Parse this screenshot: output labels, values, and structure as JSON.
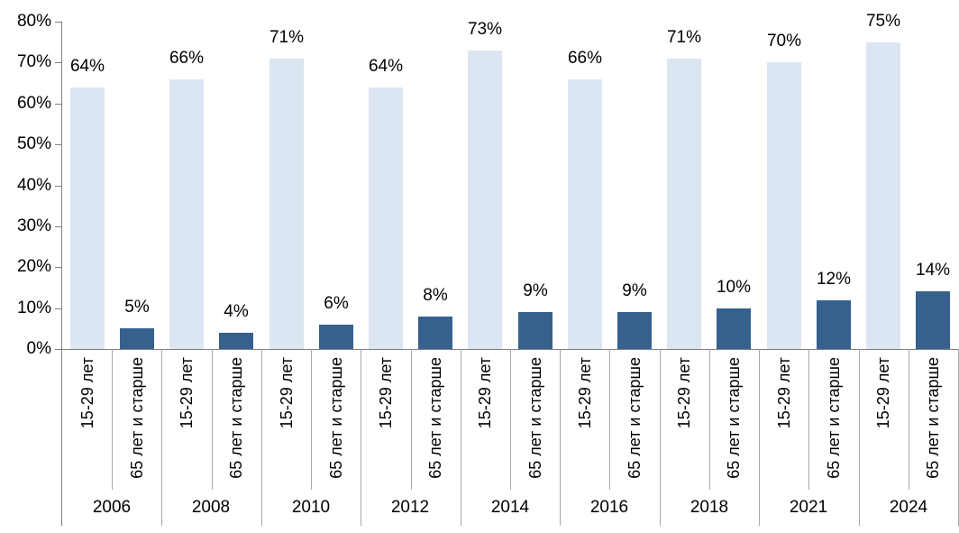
{
  "chart_data": {
    "type": "bar",
    "title": "",
    "xlabel": "",
    "ylabel": "",
    "categories": [
      "2006",
      "2008",
      "2010",
      "2012",
      "2014",
      "2016",
      "2018",
      "2021",
      "2024"
    ],
    "series": [
      {
        "name": "15-29 лет",
        "color": "#dce6f2",
        "values": [
          64,
          66,
          71,
          64,
          73,
          66,
          71,
          70,
          75
        ],
        "labels": [
          "64%",
          "66%",
          "71%",
          "64%",
          "73%",
          "66%",
          "71%",
          "70%",
          "75%"
        ]
      },
      {
        "name": "65 лет и старше",
        "color": "#36618f",
        "values": [
          5,
          4,
          6,
          8,
          9,
          9,
          10,
          12,
          14
        ],
        "labels": [
          "5%",
          "4%",
          "6%",
          "8%",
          "9%",
          "9%",
          "10%",
          "12%",
          "14%"
        ]
      }
    ],
    "ylim": [
      0,
      80
    ],
    "ytick_step": 10,
    "ytick_labels": [
      "0%",
      "10%",
      "20%",
      "30%",
      "40%",
      "50%",
      "60%",
      "70%",
      "80%"
    ],
    "grid": false,
    "legend_position": "none",
    "axis_color": "#808080",
    "divider_color": "#a6a6a6",
    "text_color": "#000000"
  }
}
